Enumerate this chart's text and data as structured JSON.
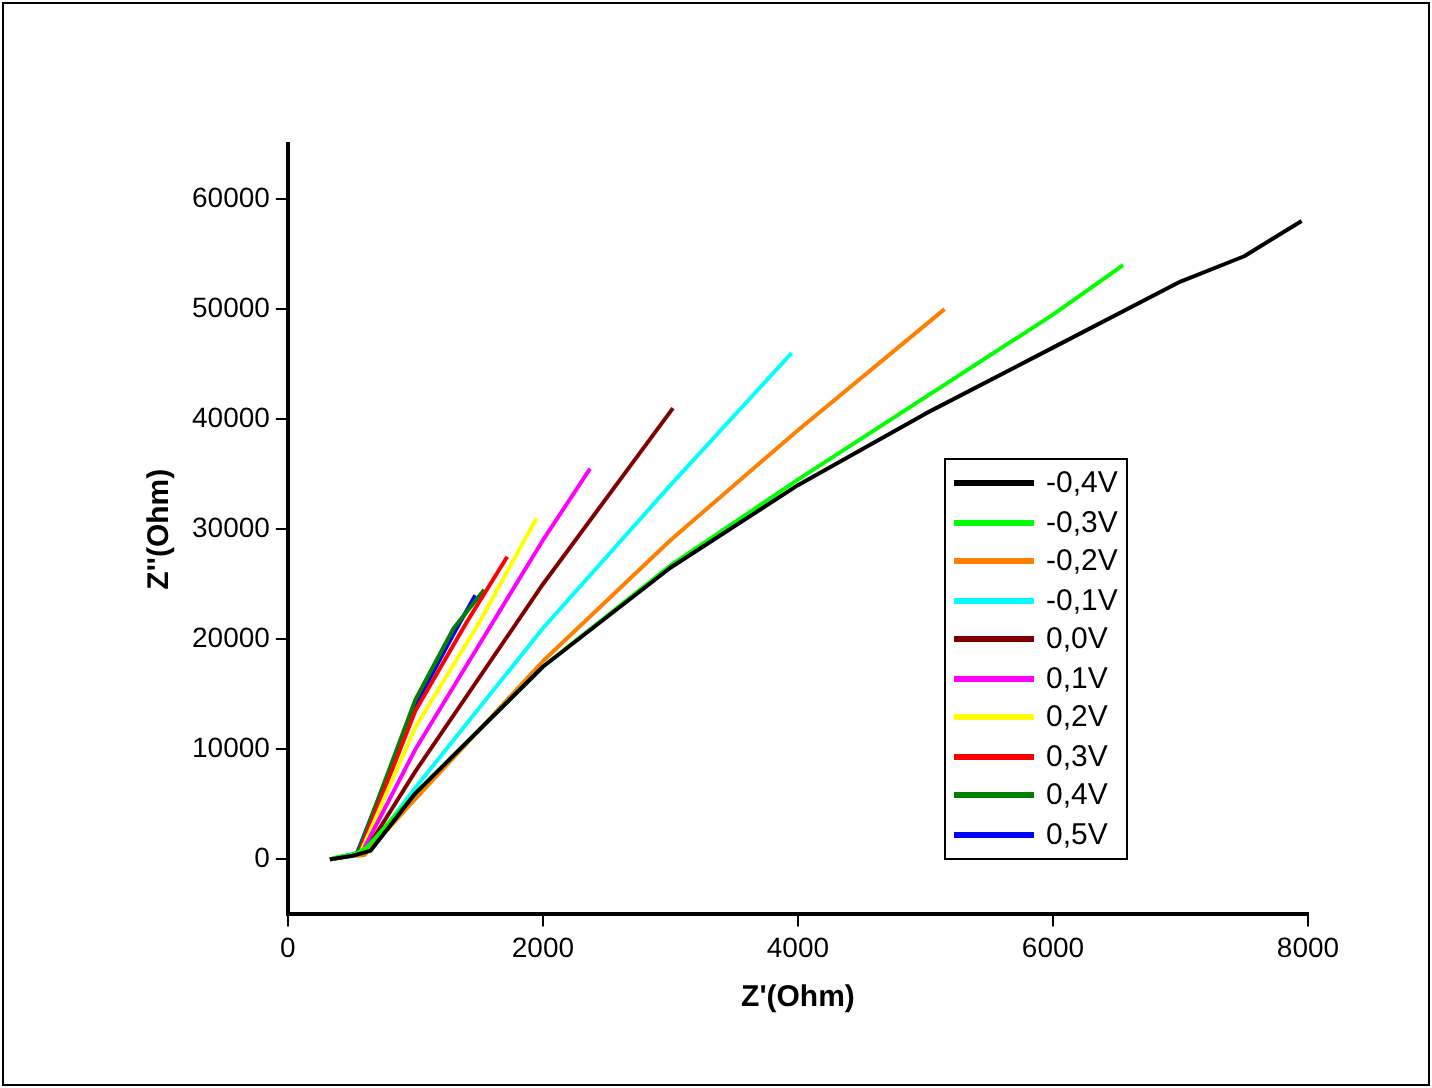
{
  "chart_data": {
    "type": "line",
    "xlabel": "Z'(Ohm)",
    "ylabel": "Z''(Ohm)",
    "xlim": [
      0,
      8000
    ],
    "xticks": [
      0,
      2000,
      4000,
      6000,
      8000
    ],
    "ylim": [
      -5000,
      65000
    ],
    "yticks": [
      0,
      10000,
      20000,
      30000,
      40000,
      50000,
      60000
    ],
    "grid": false,
    "legend": "right",
    "marker": "none",
    "line_style": "solid",
    "series": [
      {
        "name": "-0,4V",
        "color": "#000000",
        "x": [
          330,
          500,
          650,
          1000,
          2000,
          3000,
          4000,
          5000,
          6000,
          7000,
          7500,
          7950
        ],
        "values": [
          0,
          300,
          800,
          6000,
          17500,
          26500,
          34000,
          40500,
          46500,
          52500,
          54800,
          58000
        ]
      },
      {
        "name": "-0,3V",
        "color": "#00ff00",
        "x": [
          350,
          530,
          620,
          1000,
          2000,
          3000,
          4000,
          5000,
          6000,
          6550
        ],
        "values": [
          100,
          500,
          1100,
          6000,
          17500,
          26700,
          34500,
          42000,
          49500,
          54000
        ]
      },
      {
        "name": "-0,2V",
        "color": "#ff8000",
        "x": [
          330,
          480,
          600,
          1000,
          2000,
          3000,
          4000,
          5150
        ],
        "values": [
          0,
          300,
          400,
          5500,
          18000,
          29000,
          39000,
          50000
        ]
      },
      {
        "name": "-0,1V",
        "color": "#00ffff",
        "x": [
          330,
          480,
          600,
          1000,
          2000,
          3000,
          3950
        ],
        "values": [
          0,
          300,
          400,
          6500,
          21000,
          34000,
          46000
        ]
      },
      {
        "name": "0,0V",
        "color": "#800000",
        "x": [
          330,
          480,
          600,
          1000,
          2000,
          3020
        ],
        "values": [
          0,
          300,
          600,
          8000,
          25000,
          41000
        ]
      },
      {
        "name": "0,1V",
        "color": "#ff00ff",
        "x": [
          330,
          480,
          580,
          1000,
          1500,
          2000,
          2370
        ],
        "values": [
          0,
          300,
          600,
          10000,
          19500,
          29000,
          35500
        ]
      },
      {
        "name": "0,2V",
        "color": "#ffff00",
        "x": [
          330,
          480,
          570,
          1000,
          1500,
          1950
        ],
        "values": [
          0,
          300,
          600,
          12000,
          21500,
          31000
        ]
      },
      {
        "name": "0,3V",
        "color": "#ff0000",
        "x": [
          330,
          470,
          560,
          1000,
          1400,
          1720
        ],
        "values": [
          0,
          300,
          600,
          13500,
          21500,
          27500
        ]
      },
      {
        "name": "0,4V",
        "color": "#008000",
        "x": [
          330,
          460,
          550,
          1000,
          1300,
          1540
        ],
        "values": [
          0,
          300,
          600,
          14500,
          21000,
          24500
        ]
      },
      {
        "name": "0,5V",
        "color": "#0000ff",
        "x": [
          330,
          450,
          540,
          1000,
          1300,
          1470
        ],
        "values": [
          0,
          300,
          500,
          14000,
          20500,
          24000
        ]
      }
    ]
  }
}
